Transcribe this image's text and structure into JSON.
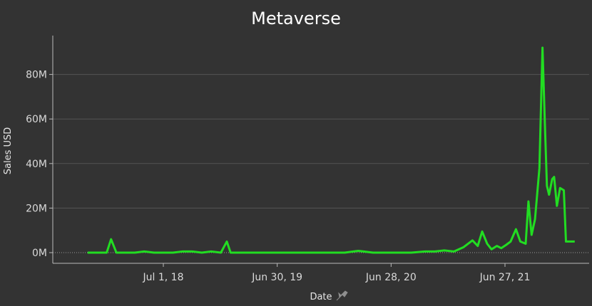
{
  "chart_data": {
    "type": "line",
    "title": "Metaverse",
    "xlabel": "Date",
    "ylabel": "Sales USD",
    "x_tick_labels": [
      "Jul 1, 18",
      "Jun 30, 19",
      "Jun 28, 20",
      "Jun 27, 21"
    ],
    "y_tick_labels": [
      "0M",
      "20M",
      "40M",
      "60M",
      "80M"
    ],
    "ylim": [
      0,
      95
    ],
    "grid": true,
    "line_color": "#22dd22",
    "series": [
      {
        "x": [
          "2017-11-01",
          "2017-12-01",
          "2018-01-01",
          "2018-01-15",
          "2018-02-01",
          "2018-03-01",
          "2018-04-01",
          "2018-05-01",
          "2018-06-01",
          "2018-07-01",
          "2018-08-01",
          "2018-09-01",
          "2018-10-01",
          "2018-11-01",
          "2018-12-01",
          "2019-01-01",
          "2019-01-20",
          "2019-02-01",
          "2019-03-01",
          "2019-04-01",
          "2019-06-01",
          "2019-08-01",
          "2019-10-01",
          "2019-12-01",
          "2020-02-01",
          "2020-03-15",
          "2020-05-01",
          "2020-07-01",
          "2020-09-01",
          "2020-10-15",
          "2020-11-15",
          "2020-12-15",
          "2021-01-15",
          "2021-02-15",
          "2021-03-15",
          "2021-04-01",
          "2021-04-15",
          "2021-05-01",
          "2021-05-15",
          "2021-06-01",
          "2021-06-15",
          "2021-07-01",
          "2021-07-15",
          "2021-08-01",
          "2021-08-15",
          "2021-09-01",
          "2021-09-10",
          "2021-09-20",
          "2021-10-01",
          "2021-10-15",
          "2021-10-25",
          "2021-11-01",
          "2021-11-08",
          "2021-11-15",
          "2021-11-25",
          "2021-12-01",
          "2021-12-10",
          "2021-12-20",
          "2022-01-01",
          "2022-01-08",
          "2022-01-15",
          "2022-01-22",
          "2022-01-29",
          "2022-02-05"
        ],
        "values": [
          0,
          0,
          0,
          6,
          0,
          0,
          0,
          0.5,
          0,
          0,
          0,
          0.5,
          0.5,
          0,
          0.5,
          0,
          5,
          0,
          0,
          0,
          0,
          0,
          0,
          0,
          0,
          0.8,
          0,
          0,
          0,
          0.5,
          0.5,
          1,
          0.5,
          2.5,
          5.5,
          3,
          9.5,
          4,
          1.5,
          3,
          2,
          3.5,
          5,
          10.5,
          5,
          4,
          23,
          8,
          15,
          38,
          92,
          60,
          30,
          26,
          33,
          34,
          21,
          29,
          28,
          5,
          5,
          5,
          5,
          5
        ]
      }
    ]
  }
}
